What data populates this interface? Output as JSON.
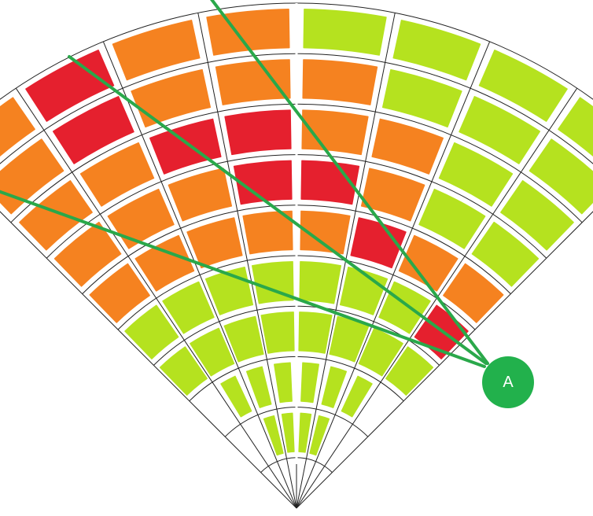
{
  "diagram": {
    "type": "radar-sector-heatmap",
    "rings": 10,
    "sectors": 8,
    "colors": {
      "red": "#e5202e",
      "orange": "#f58220",
      "lime": "#b5e21f",
      "empty": "#ffffff",
      "grid": "#222222",
      "center_line": "#ffffff",
      "ray": "#2aa84a",
      "marker": "#22b14c"
    },
    "cells": [
      [
        "",
        "",
        "",
        "",
        "",
        "",
        "",
        ""
      ],
      [
        "",
        "",
        "lime",
        "lime",
        "lime",
        "lime",
        "",
        ""
      ],
      [
        "",
        "lime",
        "lime",
        "lime",
        "lime",
        "lime",
        "lime",
        ""
      ],
      [
        "lime",
        "lime",
        "lime",
        "lime",
        "lime",
        "lime",
        "lime",
        "lime"
      ],
      [
        "lime",
        "lime",
        "lime",
        "lime",
        "lime",
        "lime",
        "lime",
        "red"
      ],
      [
        "orange",
        "orange",
        "orange",
        "orange",
        "orange",
        "red",
        "orange",
        "orange"
      ],
      [
        "orange",
        "orange",
        "orange",
        "red",
        "red",
        "orange",
        "lime",
        "lime"
      ],
      [
        "orange",
        "orange",
        "red",
        "red",
        "orange",
        "orange",
        "lime",
        "lime"
      ],
      [
        "orange",
        "red",
        "orange",
        "orange",
        "orange",
        "lime",
        "lime",
        "lime"
      ],
      [
        "orange",
        "red",
        "orange",
        "orange",
        "lime",
        "lime",
        "lime",
        "lime"
      ]
    ]
  },
  "marker": {
    "label": "A",
    "rays": 3
  }
}
